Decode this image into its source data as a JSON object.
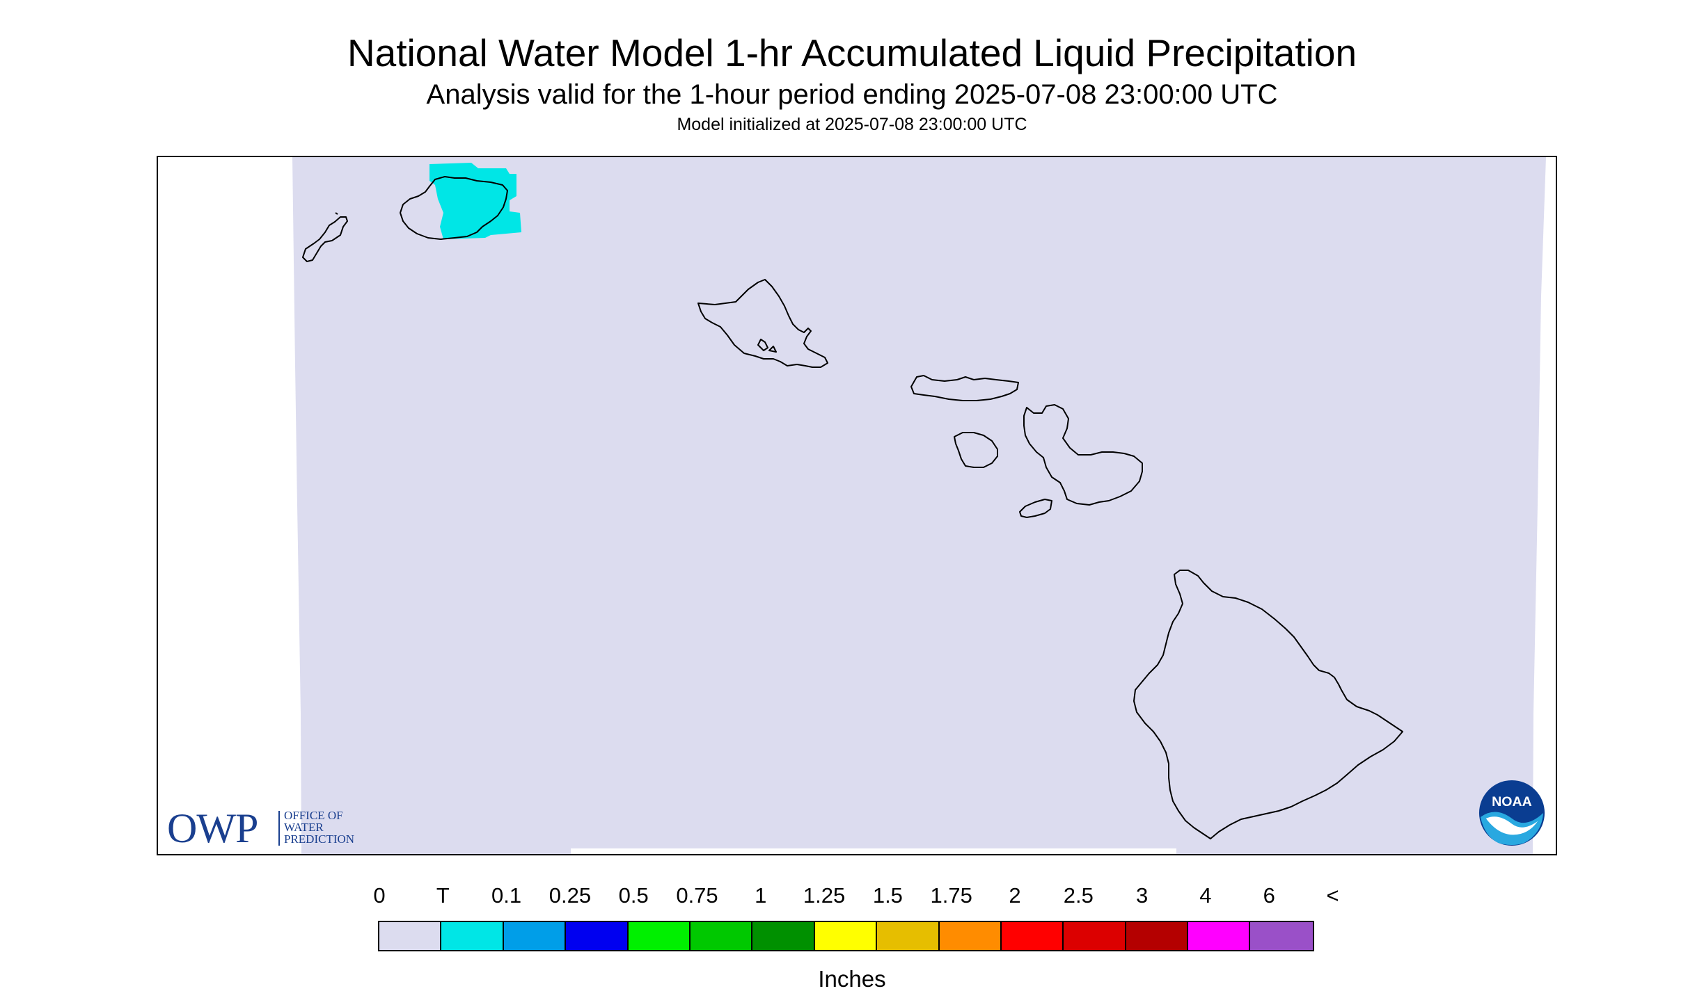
{
  "header": {
    "title": "National Water Model 1-hr Accumulated Liquid Precipitation",
    "subtitle": "Analysis valid for the 1-hour period ending 2025-07-08 23:00:00 UTC",
    "init": "Model initialized at 2025-07-08 23:00:00 UTC"
  },
  "map": {
    "region": "Hawaiian Islands",
    "background_color": "#dcdcef",
    "coast_color": "#000000",
    "precip_color": "#00e6e6",
    "islands": [
      "Niihau",
      "Kauai",
      "Oahu",
      "Molokai",
      "Lanai",
      "Maui",
      "Kahoolawe",
      "Hawaii"
    ],
    "precip_area": "Kauai"
  },
  "logos": {
    "owp_mark": "OWP",
    "owp_text": [
      "OFFICE OF",
      "WATER",
      "PREDICTION"
    ],
    "noaa": "NOAA"
  },
  "legend": {
    "labels": [
      "0",
      "T",
      "0.1",
      "0.25",
      "0.5",
      "0.75",
      "1",
      "1.25",
      "1.5",
      "1.75",
      "2",
      "2.5",
      "3",
      "4",
      "6",
      "<"
    ],
    "colors": [
      "#dcdcef",
      "#00e6e6",
      "#009ee8",
      "#0000f0",
      "#00f000",
      "#00c800",
      "#009000",
      "#ffff00",
      "#e6be00",
      "#ff8c00",
      "#ff0000",
      "#dc0000",
      "#b40000",
      "#ff00ff",
      "#9a50c8"
    ],
    "units": "Inches"
  }
}
